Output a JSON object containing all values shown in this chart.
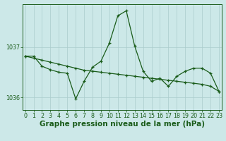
{
  "title": "Graphe pression niveau de la mer (hPa)",
  "bg_color": "#cce8e8",
  "plot_bg_color": "#cce8e8",
  "line_color": "#1a5c1a",
  "grid_color": "#aacccc",
  "x_values": [
    0,
    1,
    2,
    3,
    4,
    5,
    6,
    7,
    8,
    9,
    10,
    11,
    12,
    13,
    14,
    15,
    16,
    17,
    18,
    19,
    20,
    21,
    22,
    23
  ],
  "series1": [
    1036.82,
    1036.82,
    1036.62,
    1036.55,
    1036.5,
    1036.48,
    1035.97,
    1036.32,
    1036.6,
    1036.72,
    1037.08,
    1037.62,
    1037.72,
    1037.02,
    1036.52,
    1036.32,
    1036.38,
    1036.22,
    1036.42,
    1036.52,
    1036.58,
    1036.58,
    1036.48,
    1036.12
  ],
  "series2": [
    1036.82,
    1036.78,
    1036.74,
    1036.7,
    1036.66,
    1036.62,
    1036.58,
    1036.54,
    1036.52,
    1036.5,
    1036.48,
    1036.46,
    1036.44,
    1036.42,
    1036.4,
    1036.38,
    1036.36,
    1036.34,
    1036.32,
    1036.3,
    1036.28,
    1036.26,
    1036.22,
    1036.12
  ],
  "ylim": [
    1035.75,
    1037.85
  ],
  "yticks": [
    1036,
    1037
  ],
  "xlim": [
    -0.3,
    23.3
  ],
  "title_fontsize": 7.5,
  "tick_fontsize": 5.8,
  "marker": "+"
}
